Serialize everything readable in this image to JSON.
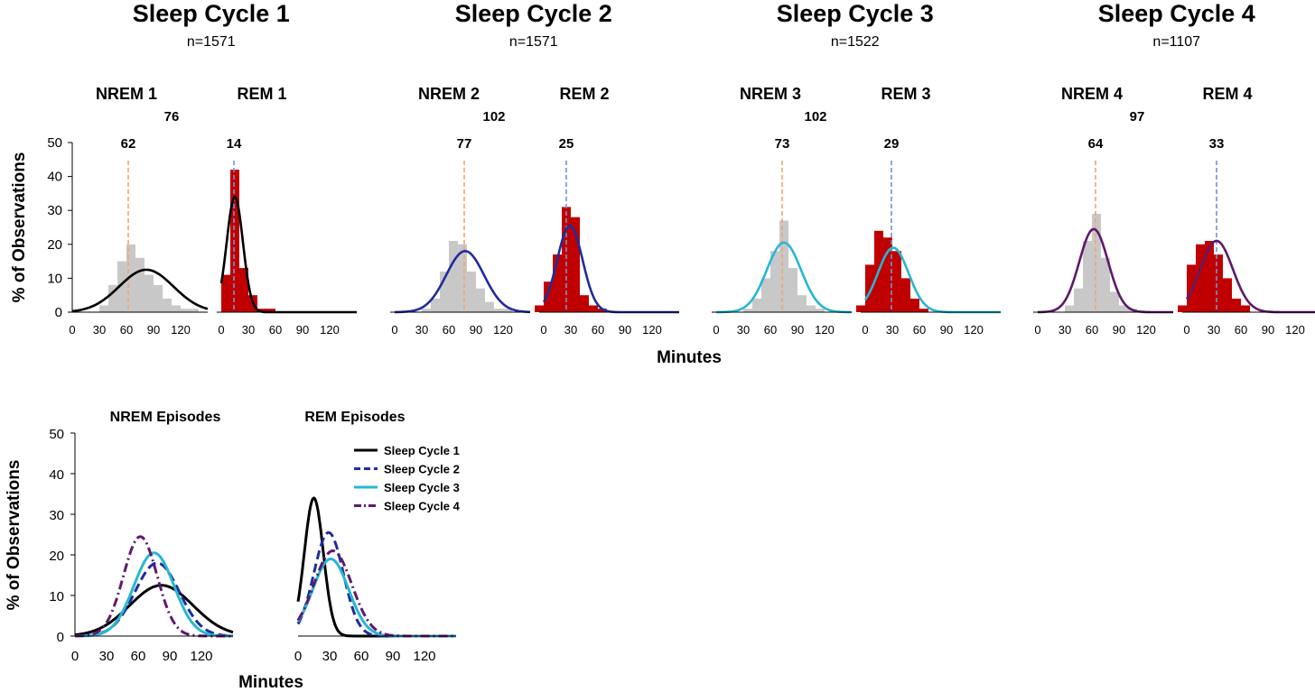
{
  "chart_data": [
    {
      "type": "histogram",
      "ylabel": "% of Observations",
      "xlabel": "Minutes",
      "ylim": [
        0,
        50
      ],
      "yticks": [
        0,
        10,
        20,
        30,
        40,
        50
      ],
      "xticks": [
        0,
        30,
        60,
        90,
        120
      ],
      "cycles": [
        {
          "title": "Sleep Cycle 1",
          "n": "n=1571",
          "total": "76",
          "nrem": {
            "label": "NREM 1",
            "median": 62,
            "median_label": "62",
            "mean": 82,
            "sd": 30,
            "peak": 12.5,
            "bins": [
              [
                30,
                2
              ],
              [
                40,
                8
              ],
              [
                50,
                15
              ],
              [
                60,
                20
              ],
              [
                70,
                16
              ],
              [
                80,
                11
              ],
              [
                90,
                8
              ],
              [
                100,
                4
              ],
              [
                110,
                2
              ],
              [
                120,
                1
              ],
              [
                130,
                1
              ]
            ]
          },
          "rem": {
            "label": "REM 1",
            "median": 14,
            "median_label": "14",
            "mean": 15,
            "sd": 9,
            "peak": 34,
            "bins": [
              [
                0,
                11
              ],
              [
                10,
                42
              ],
              [
                20,
                13
              ],
              [
                30,
                5
              ],
              [
                40,
                1
              ],
              [
                50,
                1
              ]
            ]
          },
          "curve_color": "#000000"
        },
        {
          "title": "Sleep Cycle 2",
          "n": "n=1571",
          "total": "102",
          "nrem": {
            "label": "NREM 2",
            "median": 77,
            "median_label": "77",
            "mean": 78,
            "sd": 21,
            "peak": 18,
            "bins": [
              [
                30,
                1
              ],
              [
                40,
                4
              ],
              [
                50,
                12
              ],
              [
                60,
                21
              ],
              [
                70,
                20
              ],
              [
                80,
                12
              ],
              [
                90,
                7
              ],
              [
                100,
                3
              ],
              [
                110,
                1
              ],
              [
                120,
                1
              ]
            ]
          },
          "rem": {
            "label": "REM 2",
            "median": 25,
            "median_label": "25",
            "mean": 29,
            "sd": 14,
            "peak": 25.5,
            "bins": [
              [
                -10,
                2
              ],
              [
                0,
                9
              ],
              [
                10,
                17
              ],
              [
                20,
                31
              ],
              [
                30,
                28
              ],
              [
                40,
                5
              ],
              [
                50,
                2
              ],
              [
                60,
                1
              ]
            ]
          },
          "curve_color": "#1f2d9e"
        },
        {
          "title": "Sleep Cycle 3",
          "n": "n=1522",
          "total": "102",
          "nrem": {
            "label": "NREM 3",
            "median": 73,
            "median_label": "73",
            "mean": 75,
            "sd": 19,
            "peak": 20.5,
            "bins": [
              [
                30,
                1
              ],
              [
                40,
                4
              ],
              [
                50,
                10
              ],
              [
                60,
                18
              ],
              [
                70,
                27
              ],
              [
                80,
                13
              ],
              [
                90,
                5
              ],
              [
                100,
                2
              ],
              [
                110,
                1
              ]
            ]
          },
          "rem": {
            "label": "REM 3",
            "median": 29,
            "median_label": "29",
            "mean": 31,
            "sd": 17,
            "peak": 19,
            "bins": [
              [
                -10,
                2
              ],
              [
                0,
                14
              ],
              [
                10,
                24
              ],
              [
                20,
                22
              ],
              [
                30,
                18
              ],
              [
                40,
                10
              ],
              [
                50,
                4
              ],
              [
                60,
                1
              ]
            ]
          },
          "curve_color": "#26b7d3"
        },
        {
          "title": "Sleep Cycle 4",
          "n": "n=1107",
          "total": "97",
          "nrem": {
            "label": "NREM 4",
            "median": 64,
            "median_label": "64",
            "mean": 62,
            "sd": 16,
            "peak": 24.5,
            "bins": [
              [
                30,
                2
              ],
              [
                40,
                7
              ],
              [
                50,
                21
              ],
              [
                60,
                29
              ],
              [
                70,
                16
              ],
              [
                80,
                6
              ],
              [
                90,
                2
              ],
              [
                100,
                1
              ]
            ]
          },
          "rem": {
            "label": "REM 4",
            "median": 33,
            "median_label": "33",
            "mean": 33,
            "sd": 18,
            "peak": 21,
            "bins": [
              [
                -10,
                2
              ],
              [
                0,
                14
              ],
              [
                10,
                20
              ],
              [
                20,
                21
              ],
              [
                30,
                17
              ],
              [
                40,
                10
              ],
              [
                50,
                4
              ],
              [
                60,
                2
              ]
            ]
          },
          "curve_color": "#5e1a6b"
        }
      ]
    },
    {
      "type": "line",
      "ylabel": "% of Observations",
      "xlabel": "Minutes",
      "ylim": [
        0,
        50
      ],
      "yticks": [
        0,
        10,
        20,
        30,
        40,
        50
      ],
      "xticks": [
        0,
        30,
        60,
        90,
        120
      ],
      "panels": [
        "NREM Episodes",
        "REM Episodes"
      ],
      "series": [
        {
          "name": "Sleep Cycle 1",
          "color": "#000000",
          "dash": "solid",
          "nrem": {
            "mean": 82,
            "sd": 30,
            "peak": 12.5
          },
          "rem": {
            "mean": 15,
            "sd": 9,
            "peak": 34
          }
        },
        {
          "name": "Sleep Cycle 2",
          "color": "#1f2d9e",
          "dash": "dash",
          "nrem": {
            "mean": 78,
            "sd": 21,
            "peak": 18
          },
          "rem": {
            "mean": 29,
            "sd": 14,
            "peak": 25.5
          }
        },
        {
          "name": "Sleep Cycle 3",
          "color": "#26b7d3",
          "dash": "solid",
          "nrem": {
            "mean": 75,
            "sd": 19,
            "peak": 20.5
          },
          "rem": {
            "mean": 31,
            "sd": 17,
            "peak": 19
          }
        },
        {
          "name": "Sleep Cycle 4",
          "color": "#5e1a6b",
          "dash": "dashdot",
          "nrem": {
            "mean": 62,
            "sd": 16,
            "peak": 24.5
          },
          "rem": {
            "mean": 33,
            "sd": 18,
            "peak": 21
          }
        }
      ]
    }
  ],
  "colors": {
    "nrem_bar": "#c8c8c8",
    "rem_bar": "#c00000",
    "nrem_median_line": "#f4a46a",
    "rem_median_line": "#6f93d6"
  }
}
